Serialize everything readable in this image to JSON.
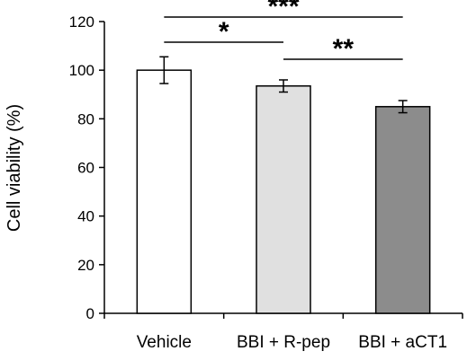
{
  "chart_data": {
    "type": "bar",
    "categories": [
      "Vehicle",
      "BBI + R-pep",
      "BBI + aCT1"
    ],
    "values": [
      100,
      93.5,
      85
    ],
    "errors": [
      5.5,
      2.5,
      2.5
    ],
    "bar_colors": [
      "#ffffff",
      "#e0e0e0",
      "#8c8c8c"
    ],
    "ylabel": "Cell viability (%)",
    "ylim": [
      0,
      120
    ],
    "yticks": [
      0,
      20,
      40,
      60,
      80,
      100,
      120
    ],
    "grid": false,
    "significance": [
      {
        "from": 0,
        "to": 2,
        "label": "***"
      },
      {
        "from": 0,
        "to": 1,
        "label": "*"
      },
      {
        "from": 1,
        "to": 2,
        "label": "**"
      }
    ]
  }
}
